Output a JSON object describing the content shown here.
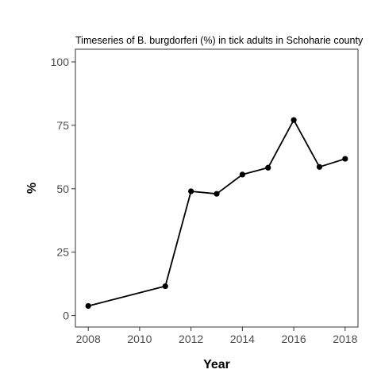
{
  "chart_data": {
    "type": "line",
    "title": "Timeseries of B. burgdorferi (%) in tick adults in Schoharie county",
    "xlabel": "Year",
    "ylabel": "%",
    "x": [
      2008,
      2011,
      2012,
      2013,
      2014,
      2015,
      2016,
      2017,
      2018
    ],
    "series": [
      {
        "values": [
          3.8,
          11.6,
          49.0,
          48.0,
          55.6,
          58.3,
          77.1,
          58.6,
          61.8
        ]
      }
    ],
    "xlim": [
      2007.5,
      2018.5
    ],
    "ylim": [
      -4.5,
      105
    ],
    "x_ticks": [
      2008,
      2010,
      2012,
      2014,
      2016,
      2018
    ],
    "x_tick_labels": [
      "2008",
      "2010",
      "2012",
      "2014",
      "2016",
      "2018"
    ],
    "y_ticks": [
      0,
      25,
      50,
      75,
      100
    ],
    "y_tick_labels": [
      "0",
      "25",
      "50",
      "75",
      "100"
    ],
    "grid": false,
    "legend": "none",
    "colors": {
      "line": "#000000",
      "points": "#000000",
      "panel_border": "#333333",
      "tick_label": "#4d4d4d"
    }
  }
}
